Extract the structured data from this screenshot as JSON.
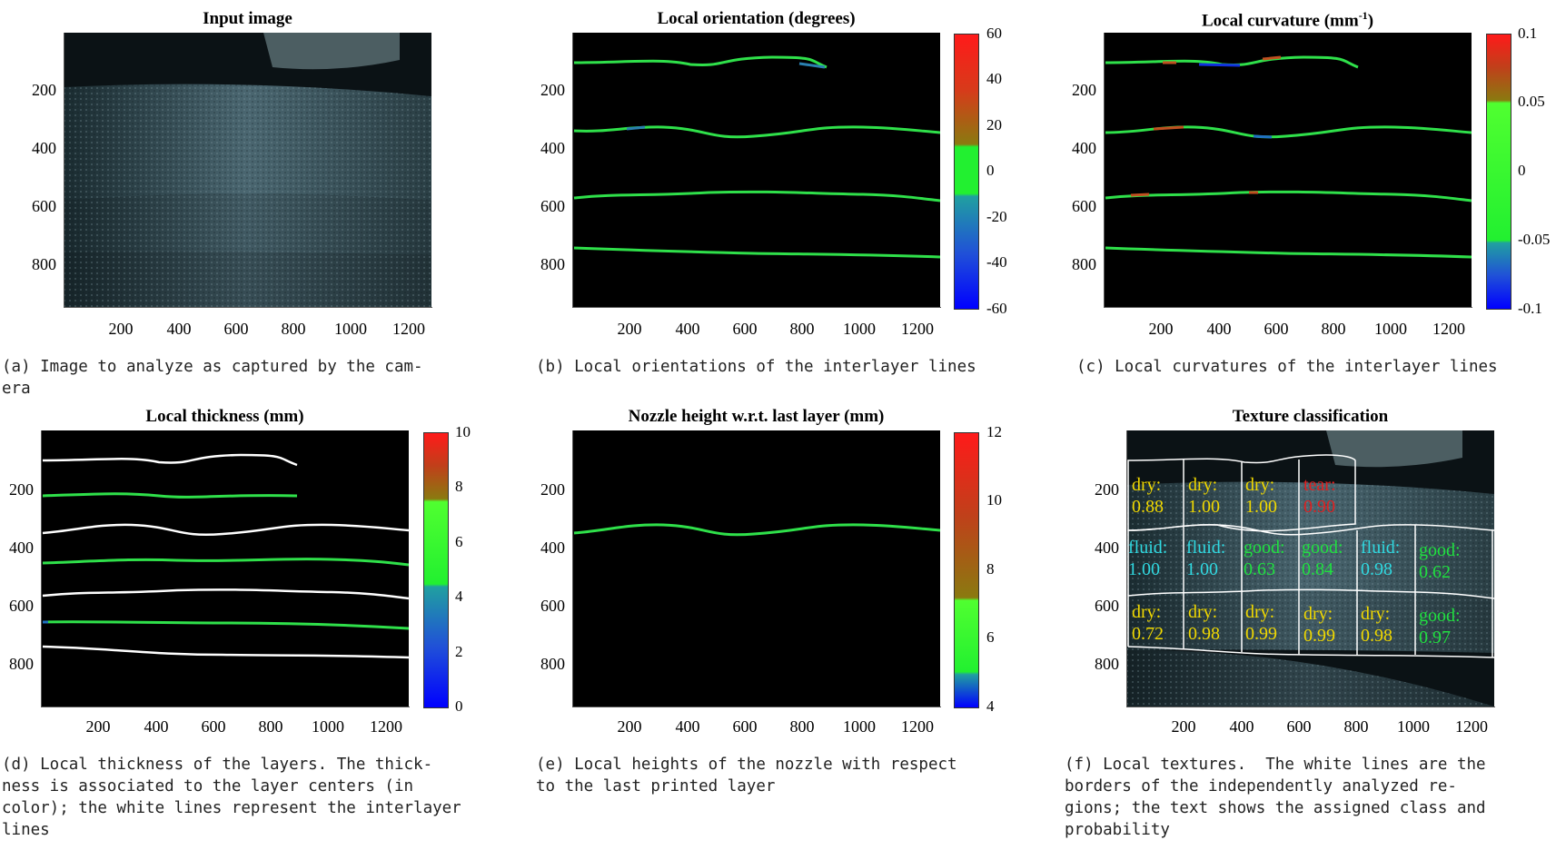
{
  "panels": [
    {
      "id": "a",
      "title": "Input image",
      "yticks": [
        "200",
        "400",
        "600",
        "800"
      ],
      "xticks": [
        "200",
        "400",
        "600",
        "800",
        "1000",
        "1200"
      ],
      "caption": [
        "(a) Image to analyze as captured by the cam-",
        "era"
      ]
    },
    {
      "id": "b",
      "title": "Local orientation (degrees)",
      "yticks": [
        "200",
        "400",
        "600",
        "800"
      ],
      "xticks": [
        "200",
        "400",
        "600",
        "800",
        "1000",
        "1200"
      ],
      "colorbar": [
        "60",
        "40",
        "20",
        "0",
        "-20",
        "-40",
        "-60"
      ],
      "caption": [
        "(b) Local orientations of the interlayer lines"
      ]
    },
    {
      "id": "c",
      "title": "Local curvature (mm",
      "title_sup": "-1",
      "title_end": ")",
      "yticks": [
        "200",
        "400",
        "600",
        "800"
      ],
      "xticks": [
        "200",
        "400",
        "600",
        "800",
        "1000",
        "1200"
      ],
      "colorbar": [
        "0.1",
        "0.05",
        "0",
        "-0.05",
        "-0.1"
      ],
      "caption": [
        "(c) Local curvatures of the interlayer lines"
      ]
    },
    {
      "id": "d",
      "title": "Local thickness (mm)",
      "yticks": [
        "200",
        "400",
        "600",
        "800"
      ],
      "xticks": [
        "200",
        "400",
        "600",
        "800",
        "1000",
        "1200"
      ],
      "colorbar": [
        "10",
        "8",
        "6",
        "4",
        "2",
        "0"
      ],
      "caption": [
        "(d) Local thickness of the layers. The thick-",
        "ness is associated to the layer centers (in",
        "color); the white lines represent the interlayer",
        "lines"
      ]
    },
    {
      "id": "e",
      "title": "Nozzle height w.r.t. last layer (mm)",
      "yticks": [
        "200",
        "400",
        "600",
        "800"
      ],
      "xticks": [
        "200",
        "400",
        "600",
        "800",
        "1000",
        "1200"
      ],
      "colorbar": [
        "12",
        "10",
        "8",
        "6",
        "4"
      ],
      "caption": [
        "(e) Local heights of the nozzle with respect",
        "to the last printed layer"
      ]
    },
    {
      "id": "f",
      "title": "Texture classification",
      "yticks": [
        "200",
        "400",
        "600",
        "800"
      ],
      "xticks": [
        "200",
        "400",
        "600",
        "800",
        "1000",
        "1200"
      ],
      "caption": [
        "(f) Local textures.  The white lines are the",
        "borders of the independently analyzed re-",
        "gions; the text shows the assigned class and",
        "probability"
      ]
    }
  ],
  "texture_regions": [
    {
      "cls": "dry:",
      "p": "0.88",
      "color": "#f0d800"
    },
    {
      "cls": "dry:",
      "p": "1.00",
      "color": "#f0d800"
    },
    {
      "cls": "dry:",
      "p": "1.00",
      "color": "#f0d800"
    },
    {
      "cls": "tear:",
      "p": "0.90",
      "color": "#e02020"
    },
    {
      "cls": "fluid:",
      "p": "1.00",
      "color": "#30d8e0"
    },
    {
      "cls": "fluid:",
      "p": "1.00",
      "color": "#30d8e0"
    },
    {
      "cls": "good:",
      "p": "0.63",
      "color": "#20e040"
    },
    {
      "cls": "good:",
      "p": "0.84",
      "color": "#20e040"
    },
    {
      "cls": "fluid:",
      "p": "0.98",
      "color": "#30d8e0"
    },
    {
      "cls": "good:",
      "p": "0.62",
      "color": "#20e040"
    },
    {
      "cls": "dry:",
      "p": "0.72",
      "color": "#f0d800"
    },
    {
      "cls": "dry:",
      "p": "0.98",
      "color": "#f0d800"
    },
    {
      "cls": "dry:",
      "p": "0.99",
      "color": "#f0d800"
    },
    {
      "cls": "dry:",
      "p": "0.99",
      "color": "#f0d800"
    },
    {
      "cls": "dry:",
      "p": "0.98",
      "color": "#f0d800"
    },
    {
      "cls": "good:",
      "p": "0.97",
      "color": "#20e040"
    }
  ]
}
